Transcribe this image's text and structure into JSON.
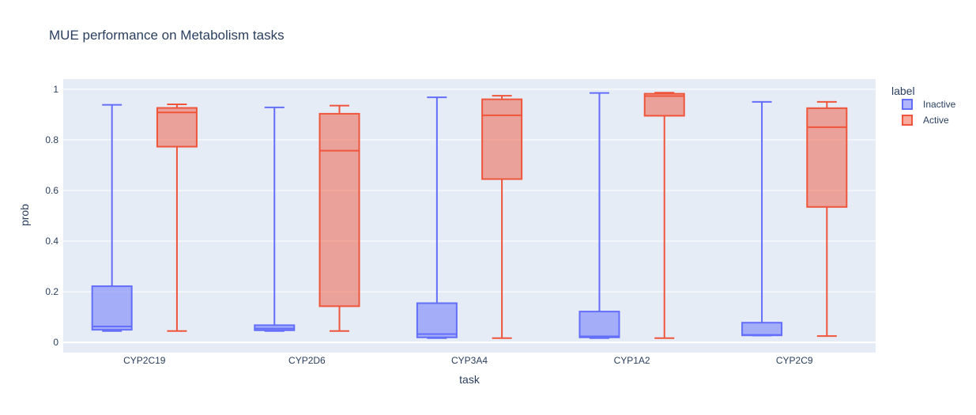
{
  "chart_data": {
    "type": "box",
    "title": "MUE performance on Metabolism tasks",
    "xlabel": "task",
    "ylabel": "prob",
    "categories": [
      "CYP2C19",
      "CYP2D6",
      "CYP3A4",
      "CYP1A2",
      "CYP2C9"
    ],
    "ylim": [
      -0.04,
      1.04
    ],
    "yticks": [
      0,
      0.2,
      0.4,
      0.6,
      0.8,
      1
    ],
    "ytick_labels": [
      "0",
      "0.2",
      "0.4",
      "0.6",
      "0.8",
      "1"
    ],
    "grid": true,
    "legend": {
      "title": "label",
      "placement": "right"
    },
    "series": [
      {
        "name": "Inactive",
        "color": "#636efa",
        "fill": "rgba(99,110,250,0.5)",
        "boxes": [
          {
            "min": 0.045,
            "q1": 0.05,
            "median": 0.063,
            "q3": 0.222,
            "max": 0.938
          },
          {
            "min": 0.045,
            "q1": 0.048,
            "median": 0.055,
            "q3": 0.068,
            "max": 0.928
          },
          {
            "min": 0.017,
            "q1": 0.02,
            "median": 0.033,
            "q3": 0.155,
            "max": 0.968
          },
          {
            "min": 0.017,
            "q1": 0.02,
            "median": 0.024,
            "q3": 0.122,
            "max": 0.985
          },
          {
            "min": 0.027,
            "q1": 0.028,
            "median": 0.03,
            "q3": 0.078,
            "max": 0.95
          }
        ]
      },
      {
        "name": "Active",
        "color": "#ef553b",
        "fill": "rgba(239,85,59,0.5)",
        "boxes": [
          {
            "min": 0.045,
            "q1": 0.773,
            "median": 0.908,
            "q3": 0.926,
            "max": 0.94
          },
          {
            "min": 0.045,
            "q1": 0.143,
            "median": 0.757,
            "q3": 0.903,
            "max": 0.935
          },
          {
            "min": 0.017,
            "q1": 0.645,
            "median": 0.897,
            "q3": 0.96,
            "max": 0.974
          },
          {
            "min": 0.017,
            "q1": 0.895,
            "median": 0.973,
            "q3": 0.982,
            "max": 0.986
          },
          {
            "min": 0.025,
            "q1": 0.535,
            "median": 0.85,
            "q3": 0.925,
            "max": 0.95
          }
        ]
      }
    ]
  }
}
